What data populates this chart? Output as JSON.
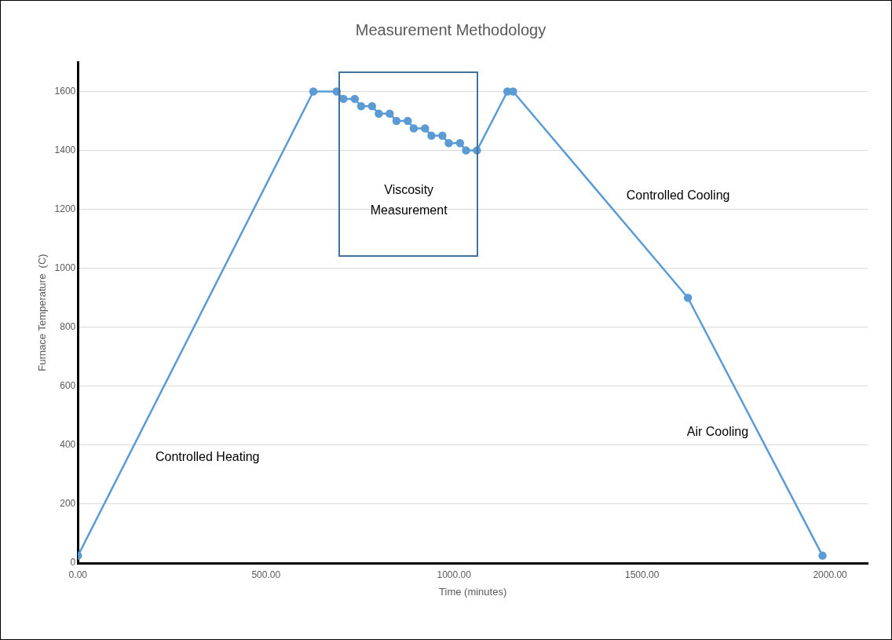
{
  "chart_data": {
    "type": "line",
    "title": "Measurement Methodology",
    "xlabel": "Time (minutes)",
    "ylabel": "Furnace Temperature  (C)",
    "x": [
      0,
      626,
      688,
      706,
      736,
      753,
      782,
      800,
      829,
      847,
      877,
      893,
      923,
      940,
      969,
      986,
      1016,
      1032,
      1061,
      1142,
      1157,
      1622,
      1980
    ],
    "series": [
      {
        "color": "#5b9bd5",
        "values": [
          25,
          1600,
          1600,
          1575,
          1575,
          1550,
          1550,
          1525,
          1525,
          1500,
          1500,
          1475,
          1475,
          1450,
          1450,
          1425,
          1425,
          1400,
          1400,
          1600,
          1600,
          900,
          25
        ]
      }
    ],
    "xlim": [
      0,
      2100
    ],
    "xticks": [
      {
        "value": 0,
        "label": "0.00"
      },
      {
        "value": 500,
        "label": "500.00"
      },
      {
        "value": 1000,
        "label": "1000.00"
      },
      {
        "value": 1500,
        "label": "1500.00"
      },
      {
        "value": 2000,
        "label": "2000.00"
      }
    ],
    "ylim": [
      0,
      1700
    ],
    "yticks": [
      0,
      200,
      400,
      600,
      800,
      1000,
      1200,
      1400,
      1600
    ],
    "grid": "y",
    "legend": false,
    "marker": "circle",
    "line_style": "solid",
    "annotations": [
      "Viscosity Measurement",
      "Controlled Cooling",
      "Air Cooling",
      "Controlled Heating"
    ]
  }
}
